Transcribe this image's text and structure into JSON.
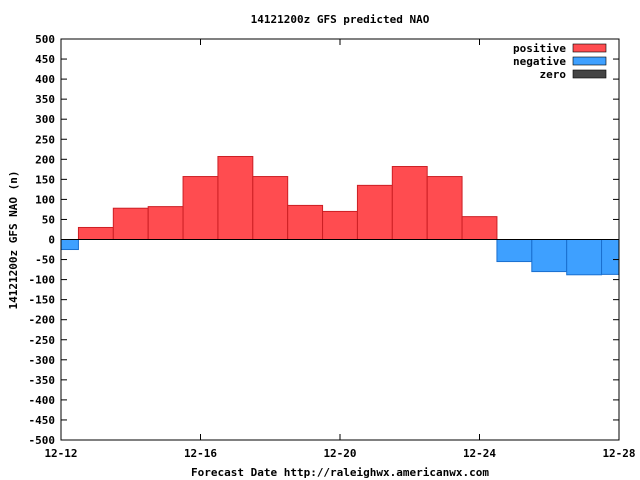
{
  "chart_data": {
    "type": "bar",
    "title": "14121200z GFS predicted NAO",
    "xlabel": "Forecast Date http://raleighwx.americanwx.com",
    "ylabel": "14121200z GFS NAO (n)",
    "ylim": [
      -500,
      500
    ],
    "yticks": [
      500,
      450,
      400,
      350,
      300,
      250,
      200,
      150,
      100,
      50,
      0,
      -50,
      -100,
      -150,
      -200,
      -250,
      -300,
      -350,
      -400,
      -450,
      -500
    ],
    "xlim": [
      0,
      16
    ],
    "xticks": [
      {
        "x": 0,
        "label": "12-12"
      },
      {
        "x": 4,
        "label": "12-16"
      },
      {
        "x": 8,
        "label": "12-20"
      },
      {
        "x": 12,
        "label": "12-24"
      },
      {
        "x": 16,
        "label": "12-28"
      }
    ],
    "bars": [
      {
        "start": 0.0,
        "end": 0.5,
        "value": -25
      },
      {
        "start": 0.5,
        "end": 1.5,
        "value": 30
      },
      {
        "start": 1.5,
        "end": 2.5,
        "value": 78
      },
      {
        "start": 2.5,
        "end": 3.5,
        "value": 82
      },
      {
        "start": 3.5,
        "end": 4.5,
        "value": 157
      },
      {
        "start": 4.5,
        "end": 5.5,
        "value": 207
      },
      {
        "start": 5.5,
        "end": 6.5,
        "value": 157
      },
      {
        "start": 6.5,
        "end": 7.5,
        "value": 85
      },
      {
        "start": 7.5,
        "end": 8.5,
        "value": 70
      },
      {
        "start": 8.5,
        "end": 9.5,
        "value": 135
      },
      {
        "start": 9.5,
        "end": 10.5,
        "value": 182
      },
      {
        "start": 10.5,
        "end": 11.5,
        "value": 157
      },
      {
        "start": 11.5,
        "end": 12.5,
        "value": 57
      },
      {
        "start": 12.5,
        "end": 13.5,
        "value": -55
      },
      {
        "start": 13.5,
        "end": 14.5,
        "value": -80
      },
      {
        "start": 14.5,
        "end": 15.5,
        "value": -88
      },
      {
        "start": 15.5,
        "end": 16.0,
        "value": -87
      }
    ],
    "legend": {
      "placement": "top-right",
      "entries": [
        {
          "name": "positive",
          "color": "#ff4c50"
        },
        {
          "name": "negative",
          "color": "#3ea0ff"
        },
        {
          "name": "zero",
          "color": "#444444"
        }
      ]
    },
    "colors": {
      "positive": "#ff4c50",
      "positive_edge": "#cc1f24",
      "negative": "#3ea0ff",
      "negative_edge": "#1a6fcf",
      "zero_line": "#000000"
    },
    "grid": false
  }
}
